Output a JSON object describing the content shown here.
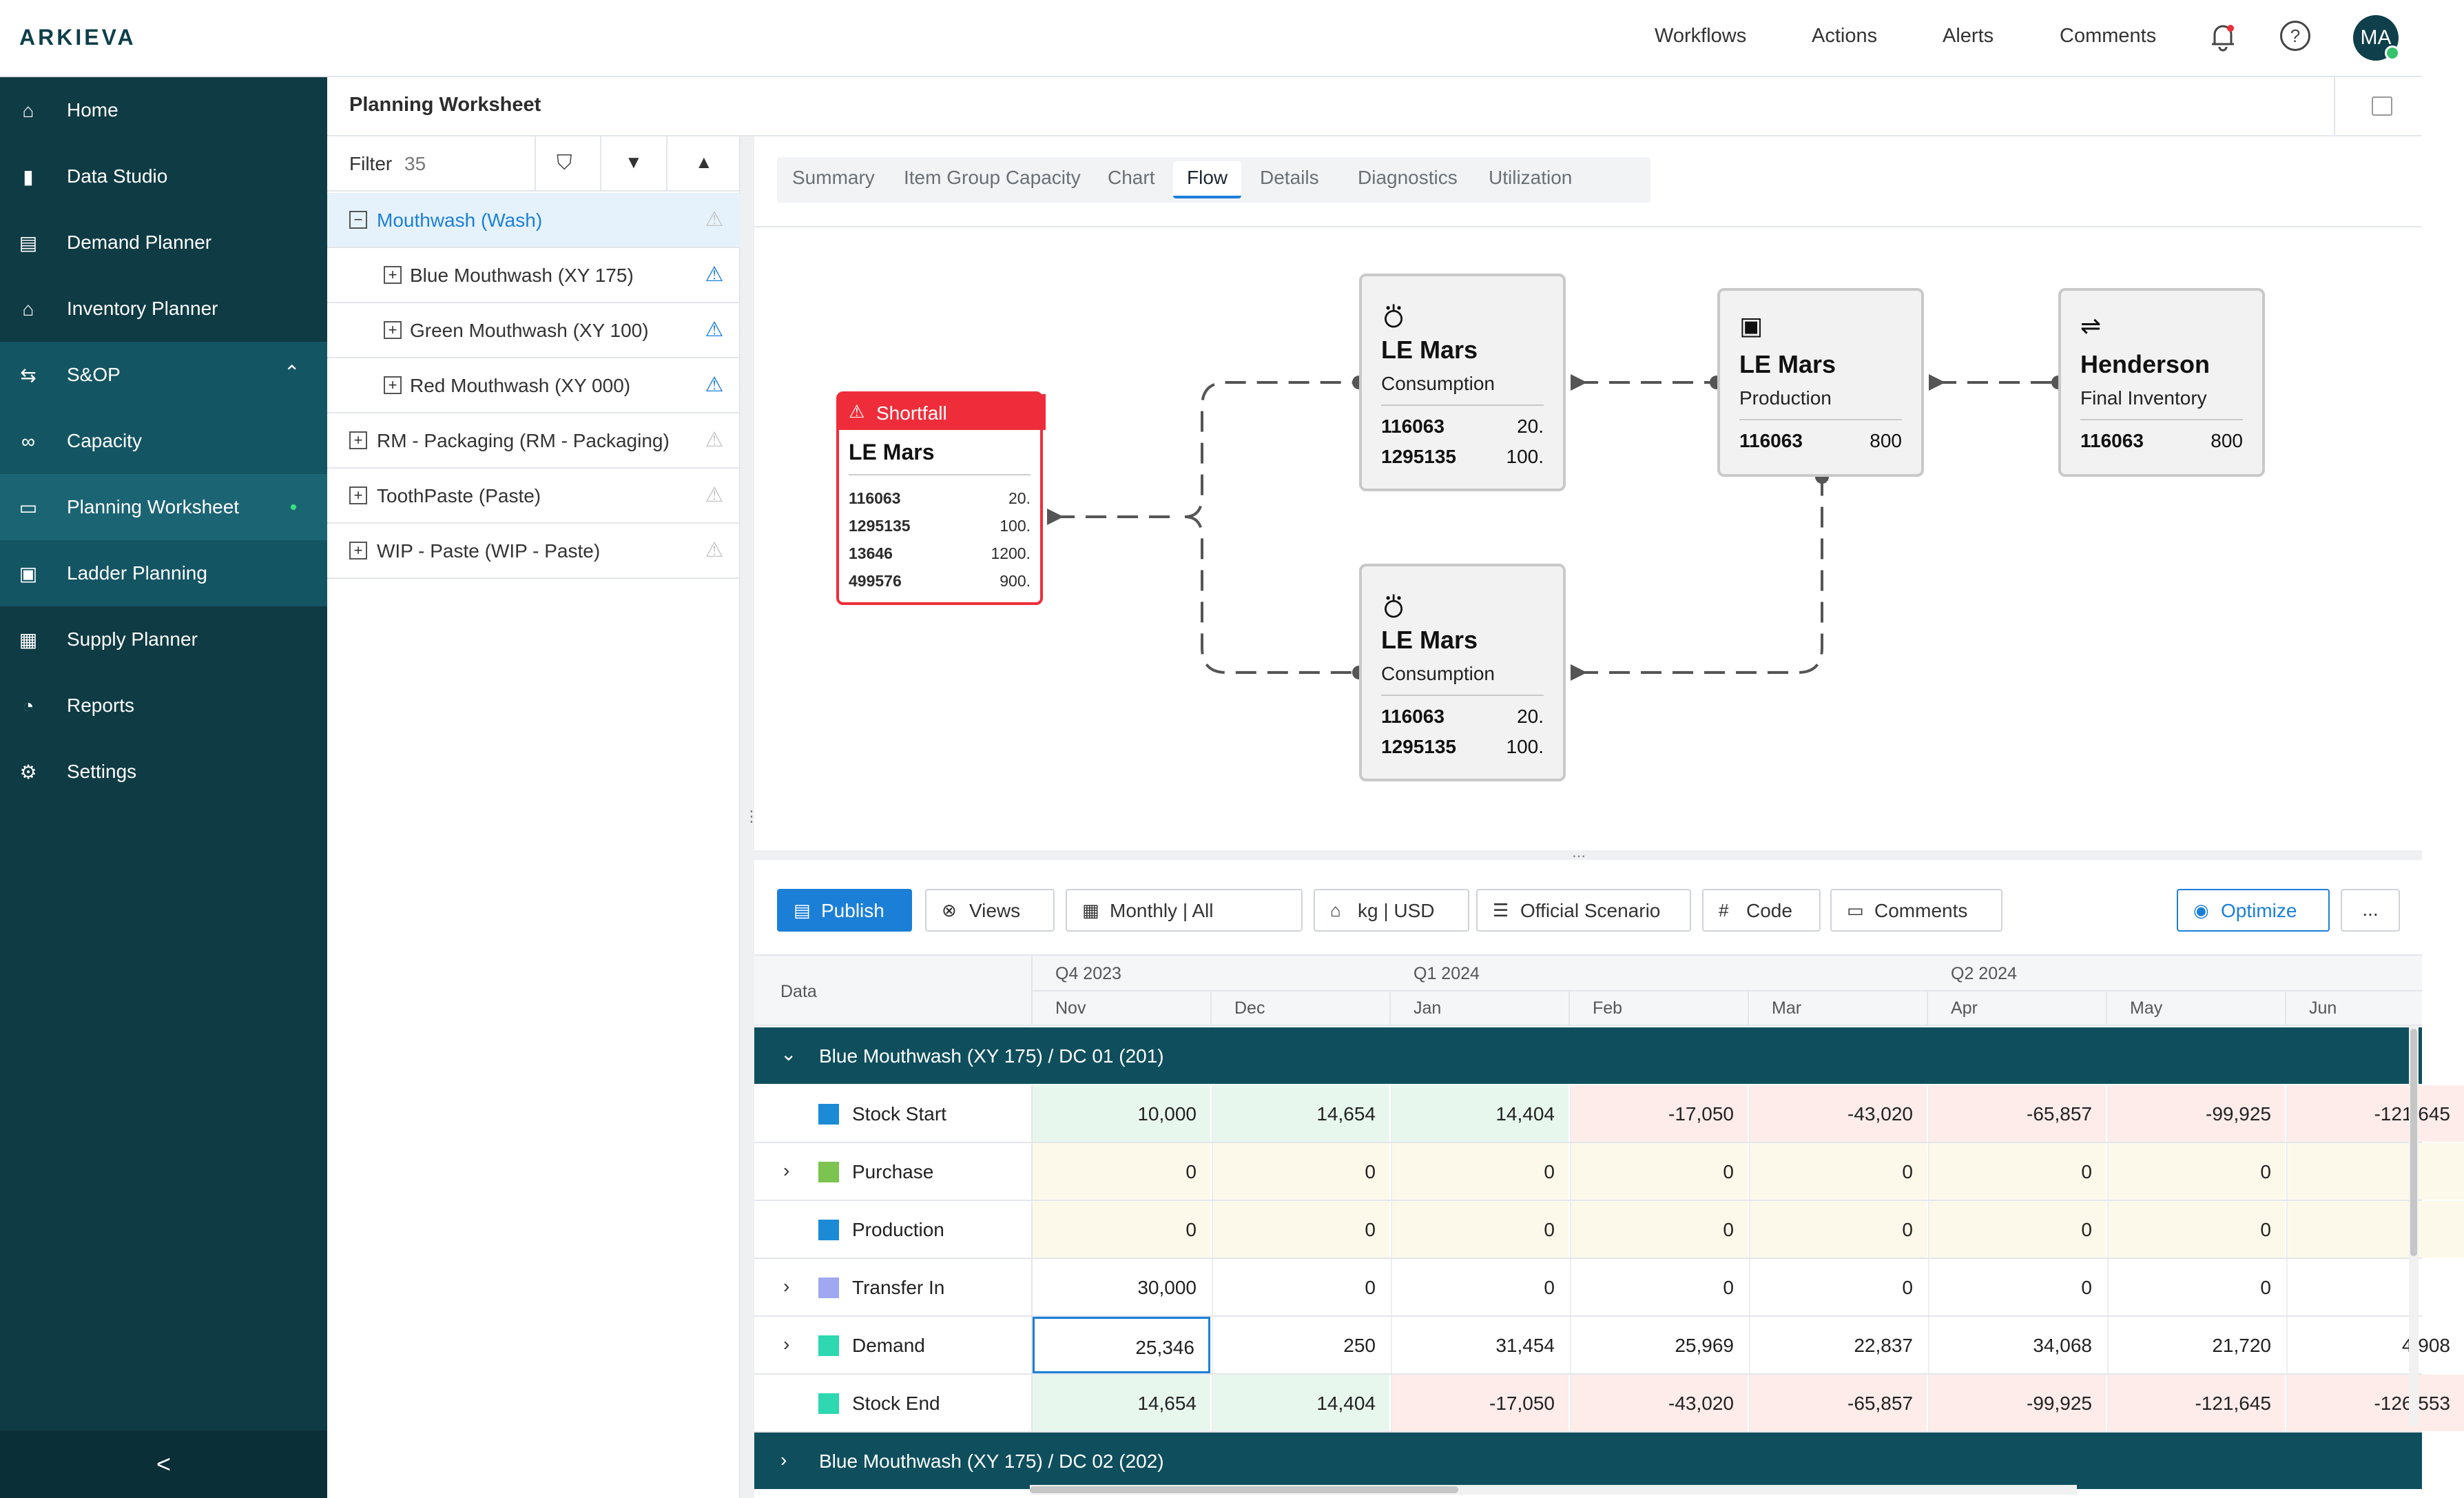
{
  "brand": "ARKIEVA",
  "topnav": {
    "workflows": "Workflows",
    "actions": "Actions",
    "alerts": "Alerts",
    "comments": "Comments",
    "avatar": "MA"
  },
  "sidebar": {
    "items": [
      {
        "label": "Home",
        "icon": "home-icon"
      },
      {
        "label": "Data Studio",
        "icon": "bar-chart-icon"
      },
      {
        "label": "Demand Planner",
        "icon": "document-icon"
      },
      {
        "label": "Inventory Planner",
        "icon": "warehouse-icon"
      },
      {
        "label": "S&OP",
        "icon": "sop-icon"
      },
      {
        "label": "Capacity",
        "icon": "capacity-icon"
      },
      {
        "label": "Planning Worksheet",
        "icon": "worksheet-icon"
      },
      {
        "label": "Ladder Planning",
        "icon": "clipboard-icon"
      },
      {
        "label": "Supply Planner",
        "icon": "truck-icon"
      },
      {
        "label": "Reports",
        "icon": "pie-chart-icon"
      },
      {
        "label": "Settings",
        "icon": "gear-icon"
      }
    ],
    "collapse": "<"
  },
  "worksheet": {
    "title": "Planning Worksheet"
  },
  "tree": {
    "filter_label": "Filter",
    "filter_count": "35",
    "rows": [
      "Mouthwash (Wash)",
      "Blue Mouthwash (XY 175)",
      "Green Mouthwash (XY 100)",
      "Red Mouthwash (XY 000)",
      "RM - Packaging (RM - Packaging)",
      "ToothPaste (Paste)",
      "WIP - Paste (WIP - Paste)"
    ]
  },
  "tabs": [
    "Summary",
    "Item Group Capacity",
    "Chart",
    "Flow",
    "Details",
    "Diagnostics",
    "Utilization"
  ],
  "flow": {
    "shortfall": {
      "badge": "Shortfall",
      "name": "LE Mars",
      "rows": [
        [
          "116063",
          "20."
        ],
        [
          "1295135",
          "100."
        ],
        [
          "13646",
          "1200."
        ],
        [
          "499576",
          "900."
        ]
      ]
    },
    "cons1": {
      "name": "LE Mars",
      "type": "Consumption",
      "rows": [
        [
          "116063",
          "20."
        ],
        [
          "1295135",
          "100."
        ]
      ]
    },
    "cons2": {
      "name": "LE Mars",
      "type": "Consumption",
      "rows": [
        [
          "116063",
          "20."
        ],
        [
          "1295135",
          "100."
        ]
      ]
    },
    "prod": {
      "name": "LE Mars",
      "type": "Production",
      "rows": [
        [
          "116063",
          "800"
        ]
      ]
    },
    "final": {
      "name": "Henderson",
      "type": "Final Inventory",
      "rows": [
        [
          "116063",
          "800"
        ]
      ]
    }
  },
  "toolbar": {
    "publish": "Publish",
    "views": "Views",
    "period": "Monthly  |  All",
    "units": "kg | USD",
    "scenario": "Official Scenario",
    "code": "Code",
    "comments": "Comments",
    "optimize": "Optimize",
    "more": "..."
  },
  "grid": {
    "data_label": "Data",
    "quarters": [
      "Q4 2023",
      "Q1 2024",
      "Q2 2024"
    ],
    "months": [
      "Nov",
      "Dec",
      "Jan",
      "Feb",
      "Mar",
      "Apr",
      "May",
      "Jun"
    ],
    "group1": "Blue Mouthwash (XY 175) / DC 01 (201)",
    "group2": "Blue Mouthwash (XY 175) / DC 02 (202)",
    "rows": [
      {
        "label": "Stock Start",
        "color": "#1b8bd6",
        "values": [
          "10,000",
          "14,654",
          "14,404",
          "-17,050",
          "-43,020",
          "-65,857",
          "-99,925",
          "-121,645"
        ]
      },
      {
        "label": "Purchase",
        "color": "#7cc34f",
        "values": [
          "0",
          "0",
          "0",
          "0",
          "0",
          "0",
          "0",
          ""
        ]
      },
      {
        "label": "Production",
        "color": "#1b8bd6",
        "values": [
          "0",
          "0",
          "0",
          "0",
          "0",
          "0",
          "0",
          ""
        ]
      },
      {
        "label": "Transfer In",
        "color": "#9fa8f0",
        "values": [
          "30,000",
          "0",
          "0",
          "0",
          "0",
          "0",
          "0",
          ""
        ]
      },
      {
        "label": "Demand",
        "color": "#2ed8b0",
        "values": [
          "25,346",
          "250",
          "31,454",
          "25,969",
          "22,837",
          "34,068",
          "21,720",
          "4,908"
        ]
      },
      {
        "label": "Stock End",
        "color": "#2ed8b0",
        "values": [
          "14,654",
          "14,404",
          "-17,050",
          "-43,020",
          "-65,857",
          "-99,925",
          "-121,645",
          "-126,553"
        ]
      }
    ]
  }
}
